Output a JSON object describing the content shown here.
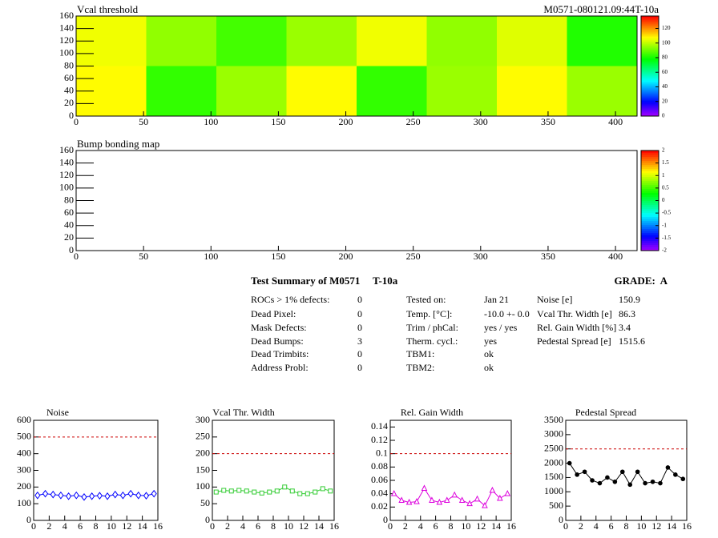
{
  "chart_data": [
    {
      "type": "heatmap",
      "title": "Vcal threshold",
      "subtitle": "M0571-080121.09:44T-10a",
      "xlim": [
        0,
        416
      ],
      "xticks": [
        0,
        50,
        100,
        150,
        200,
        250,
        300,
        350,
        400
      ],
      "ylim": [
        0,
        160
      ],
      "yticks": [
        0,
        20,
        40,
        60,
        80,
        100,
        120,
        140,
        160
      ],
      "zlim": [
        0,
        137
      ],
      "zticks": [
        0,
        20,
        40,
        60,
        80,
        100,
        120
      ],
      "values": [
        [
          108,
          84,
          96,
          108,
          84,
          96,
          108,
          96
        ],
        [
          106,
          95,
          86,
          96,
          106,
          95,
          104,
          82
        ]
      ]
    },
    {
      "type": "heatmap",
      "title": "Bump bonding map",
      "xlim": [
        0,
        416
      ],
      "xticks": [
        0,
        50,
        100,
        150,
        200,
        250,
        300,
        350,
        400
      ],
      "ylim": [
        0,
        160
      ],
      "yticks": [
        0,
        20,
        40,
        60,
        80,
        100,
        120,
        140,
        160
      ],
      "zlim": [
        -2,
        2
      ],
      "zticks": [
        -2,
        -1.5,
        -1,
        -0.5,
        0,
        0.5,
        1,
        1.5,
        2
      ],
      "values": []
    },
    {
      "type": "line",
      "title": "Noise",
      "color": "#0000ff",
      "marker": "diamond",
      "x": [
        0.5,
        1.5,
        2.5,
        3.5,
        4.5,
        5.5,
        6.5,
        7.5,
        8.5,
        9.5,
        10.5,
        11.5,
        12.5,
        13.5,
        14.5,
        15.5
      ],
      "values": [
        150,
        160,
        155,
        150,
        145,
        150,
        140,
        145,
        148,
        145,
        155,
        150,
        160,
        150,
        148,
        160
      ],
      "threshold": 500,
      "xlim": [
        0,
        16
      ],
      "xticks": [
        0,
        2,
        4,
        6,
        8,
        10,
        12,
        14,
        16
      ],
      "ylim": [
        0,
        600
      ],
      "yticks": [
        0,
        100,
        200,
        300,
        400,
        500,
        600
      ]
    },
    {
      "type": "line",
      "title": "Vcal Thr. Width",
      "color": "#33cc33",
      "marker": "square",
      "x": [
        0.5,
        1.5,
        2.5,
        3.5,
        4.5,
        5.5,
        6.5,
        7.5,
        8.5,
        9.5,
        10.5,
        11.5,
        12.5,
        13.5,
        14.5,
        15.5
      ],
      "values": [
        85,
        90,
        88,
        90,
        88,
        85,
        82,
        85,
        88,
        100,
        88,
        80,
        80,
        85,
        95,
        88
      ],
      "threshold": 200,
      "xlim": [
        0,
        16
      ],
      "xticks": [
        0,
        2,
        4,
        6,
        8,
        10,
        12,
        14,
        16
      ],
      "ylim": [
        0,
        300
      ],
      "yticks": [
        0,
        50,
        100,
        150,
        200,
        250,
        300
      ]
    },
    {
      "type": "line",
      "title": "Rel. Gain Width",
      "color": "#dd00dd",
      "marker": "triangle",
      "x": [
        0.5,
        1.5,
        2.5,
        3.5,
        4.5,
        5.5,
        6.5,
        7.5,
        8.5,
        9.5,
        10.5,
        11.5,
        12.5,
        13.5,
        14.5,
        15.5
      ],
      "values": [
        0.04,
        0.03,
        0.027,
        0.028,
        0.048,
        0.03,
        0.027,
        0.03,
        0.038,
        0.03,
        0.025,
        0.032,
        0.022,
        0.045,
        0.033,
        0.04
      ],
      "threshold": 0.1,
      "xlim": [
        0,
        16
      ],
      "xticks": [
        0,
        2,
        4,
        6,
        8,
        10,
        12,
        14,
        16
      ],
      "ylim": [
        0,
        0.15
      ],
      "yticks": [
        0,
        0.02,
        0.04,
        0.06,
        0.08,
        0.1,
        0.12,
        0.14
      ]
    },
    {
      "type": "line",
      "title": "Pedestal Spread",
      "color": "#000000",
      "marker": "circle",
      "x": [
        0.5,
        1.5,
        2.5,
        3.5,
        4.5,
        5.5,
        6.5,
        7.5,
        8.5,
        9.5,
        10.5,
        11.5,
        12.5,
        13.5,
        14.5,
        15.5
      ],
      "values": [
        2000,
        1600,
        1700,
        1400,
        1300,
        1500,
        1350,
        1700,
        1250,
        1700,
        1300,
        1350,
        1300,
        1850,
        1600,
        1450
      ],
      "threshold": 2500,
      "xlim": [
        0,
        16
      ],
      "xticks": [
        0,
        2,
        4,
        6,
        8,
        10,
        12,
        14,
        16
      ],
      "ylim": [
        0,
        3500
      ],
      "yticks": [
        0,
        500,
        1000,
        1500,
        2000,
        2500,
        3000,
        3500
      ]
    }
  ],
  "summary": {
    "title": "Test Summary of M0571",
    "module": "T-10a",
    "grade": "GRADE:  A",
    "left": [
      [
        "ROCs > 1% defects:",
        0
      ],
      [
        "Dead Pixel:",
        0
      ],
      [
        "Mask Defects:",
        0
      ],
      [
        "Dead Bumps:",
        3
      ],
      [
        "Dead Trimbits:",
        0
      ],
      [
        "Address Probl:",
        0
      ]
    ],
    "mid": [
      [
        "Tested on:",
        "Jan 21"
      ],
      [
        "Temp. [°C]:",
        "-10.0 +- 0.0"
      ],
      [
        "Trim / phCal:",
        "yes / yes"
      ],
      [
        "Therm. cycl.:",
        "yes"
      ],
      [
        "TBM1:",
        "ok"
      ],
      [
        "TBM2:",
        "ok"
      ]
    ],
    "right": [
      [
        "Noise [e]",
        150.9
      ],
      [
        "Vcal Thr. Width [e]",
        86.3
      ],
      [
        "Rel. Gain Width [%]",
        3.4
      ],
      [
        "Pedestal Spread [e]",
        1515.6
      ]
    ]
  }
}
